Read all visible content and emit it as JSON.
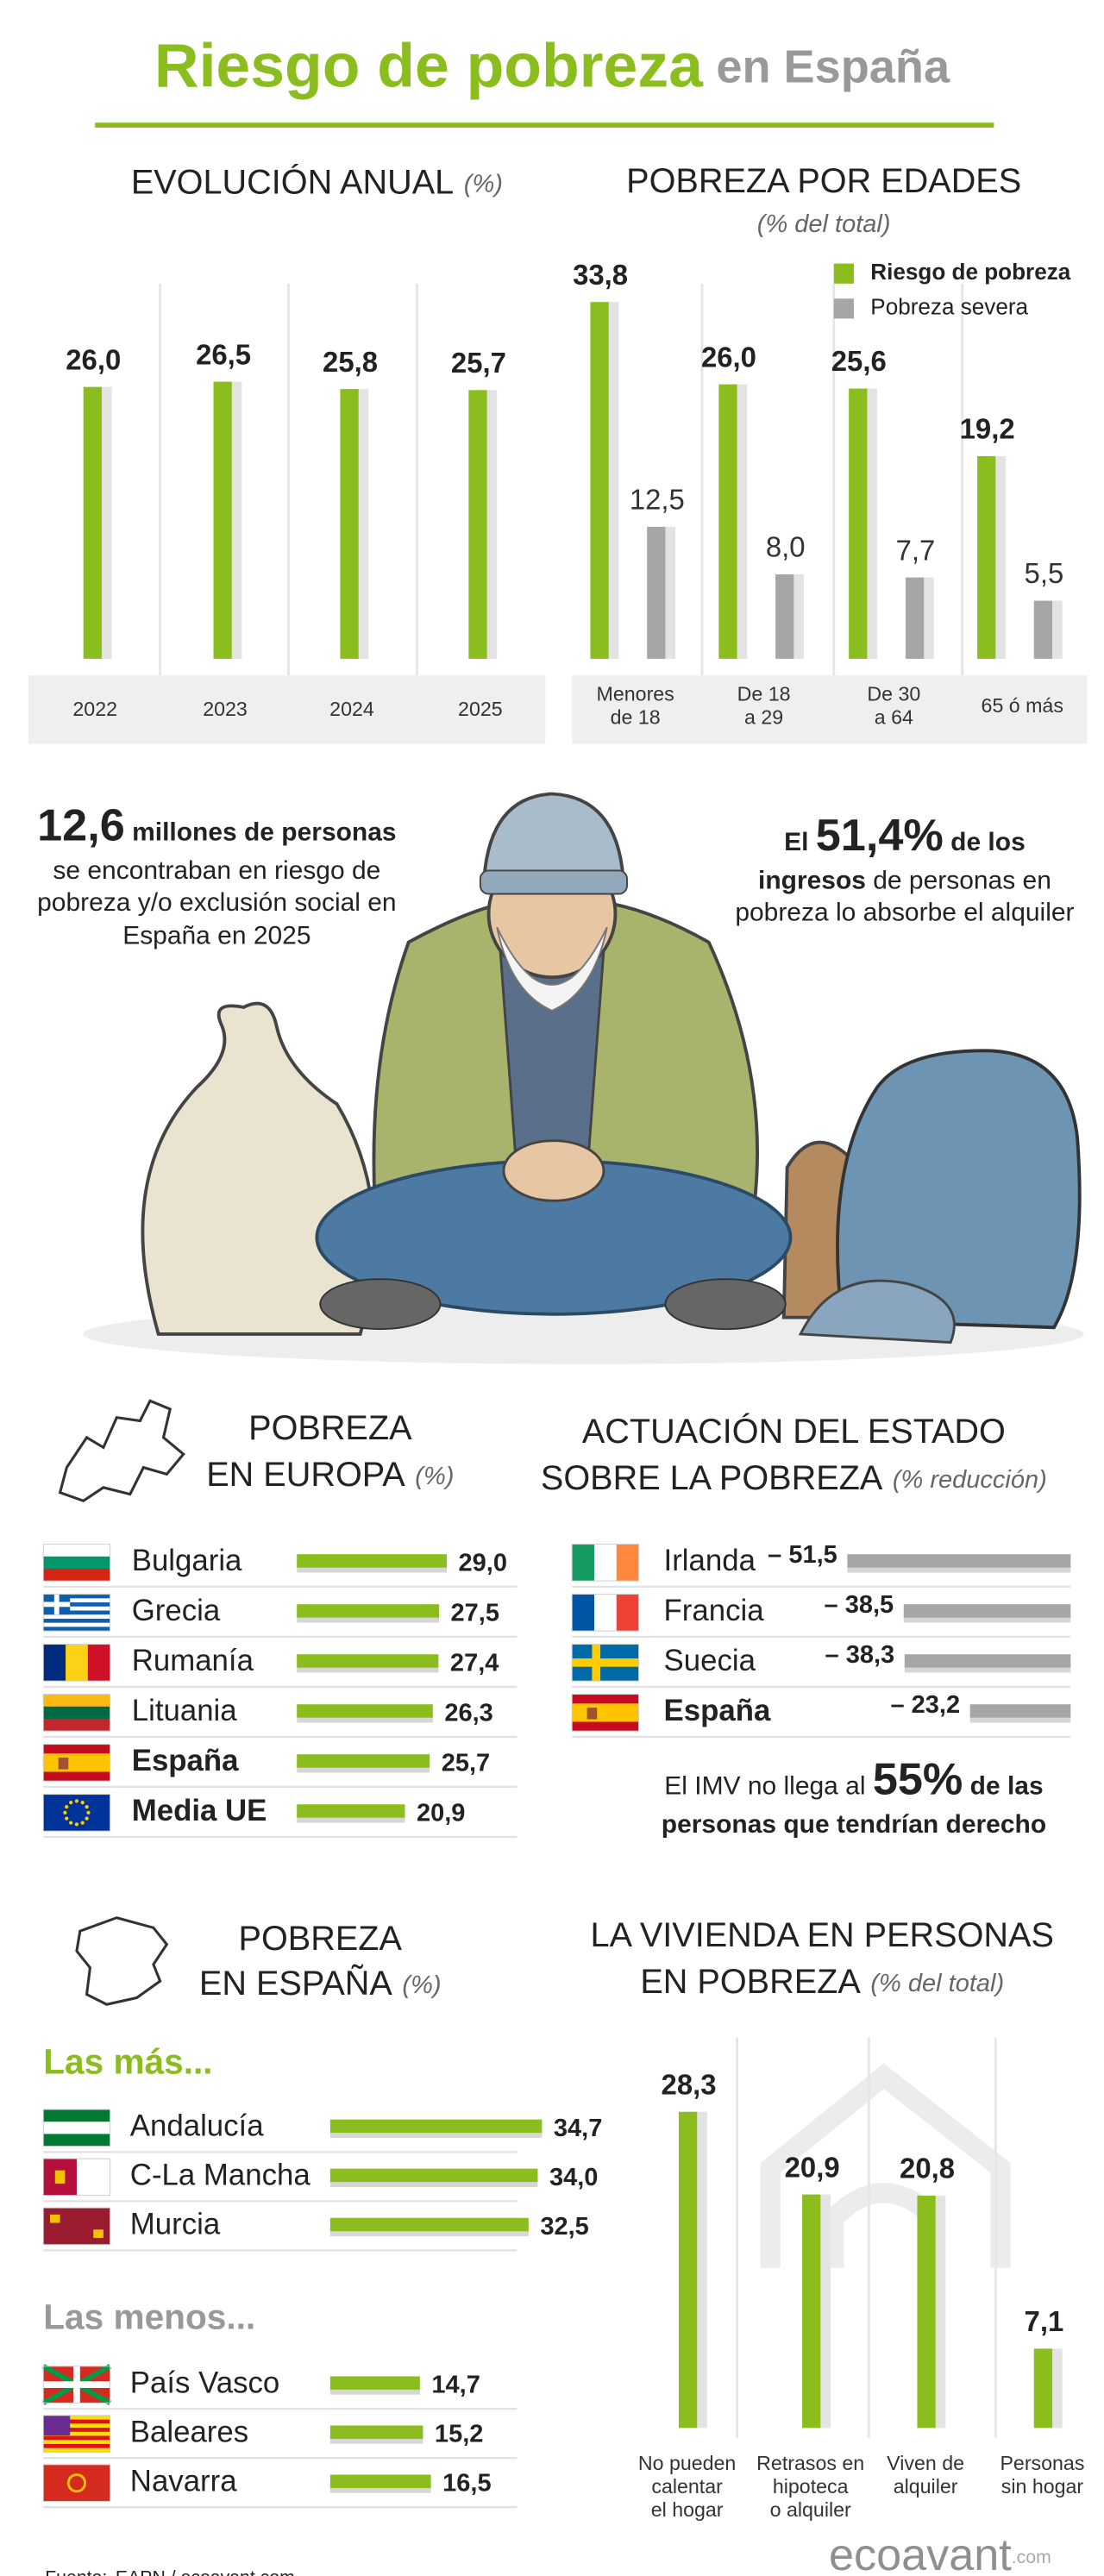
{
  "title": {
    "main": "Riesgo de pobreza",
    "rest": "en España"
  },
  "chart_data": [
    {
      "type": "bar",
      "title": [
        "EVOLUCIÓN ANUAL"
      ],
      "unit": "(%)",
      "categories": [
        "2022",
        "2023",
        "2024",
        "2025"
      ],
      "values": [
        26.0,
        26.5,
        25.8,
        25.7
      ],
      "value_labels": [
        "26,0",
        "26,5",
        "25,8",
        "25,7"
      ],
      "color": "#8cbd1f"
    },
    {
      "type": "bar",
      "title": [
        "POBREZA POR EDADES"
      ],
      "subtitle": "(% del total)",
      "categories": [
        [
          "Menores",
          "de 18"
        ],
        [
          "De 18",
          "a 29"
        ],
        [
          "De 30",
          "a 64"
        ],
        [
          "65 ó más"
        ]
      ],
      "series": [
        {
          "name": "Riesgo de pobreza",
          "color": "#8cbd1f",
          "values": [
            33.8,
            26.0,
            25.6,
            19.2
          ],
          "value_labels": [
            "33,8",
            "26,0",
            "25,6",
            "19,2"
          ]
        },
        {
          "name": "Pobreza severa",
          "color": "#a6a6a6",
          "values": [
            12.5,
            8.0,
            7.7,
            5.5
          ],
          "value_labels": [
            "12,5",
            "8,0",
            "7,7",
            "5,5"
          ]
        }
      ]
    },
    {
      "type": "hbar",
      "title": [
        "POBREZA",
        "EN EUROPA"
      ],
      "unit": "(%)",
      "categories": [
        "Bulgaria",
        "Grecia",
        "Rumanía",
        "Lituania",
        "España",
        "Media UE"
      ],
      "values": [
        29.0,
        27.5,
        27.4,
        26.3,
        25.7,
        20.9
      ],
      "value_labels": [
        "29,0",
        "27,5",
        "27,4",
        "26,3",
        "25,7",
        "20,9"
      ],
      "emphasized": [
        4,
        5
      ],
      "color": "#8cbd1f"
    },
    {
      "type": "hbar",
      "title": [
        "ACTUACIÓN DEL ESTADO",
        "SOBRE LA POBREZA"
      ],
      "unit": "(% reducción)",
      "categories": [
        "Irlanda",
        "Francia",
        "Suecia",
        "España"
      ],
      "values": [
        -51.5,
        -38.5,
        -38.3,
        -23.2
      ],
      "value_labels": [
        "– 51,5",
        "– 38,5",
        "– 38,3",
        "– 23,2"
      ],
      "emphasized": [
        3
      ],
      "color": "#a6a6a6"
    },
    {
      "type": "hbar-groups",
      "title": [
        "POBREZA",
        "EN ESPAÑA"
      ],
      "unit": "(%)",
      "color": "#8cbd1f",
      "groups": [
        {
          "name": "Las más...",
          "name_color": "#8cbd1f",
          "categories": [
            "Andalucía",
            "C-La Mancha",
            "Murcia"
          ],
          "values": [
            34.7,
            34.0,
            32.5
          ],
          "value_labels": [
            "34,7",
            "34,0",
            "32,5"
          ]
        },
        {
          "name": "Las menos...",
          "name_color": "#999999",
          "categories": [
            "País Vasco",
            "Baleares",
            "Navarra"
          ],
          "values": [
            14.7,
            15.2,
            16.5
          ],
          "value_labels": [
            "14,7",
            "15,2",
            "16,5"
          ]
        }
      ]
    },
    {
      "type": "bar",
      "title": [
        "LA VIVIENDA EN PERSONAS",
        "EN POBREZA"
      ],
      "unit": "(% del total)",
      "categories": [
        [
          "No pueden",
          "calentar",
          "el hogar"
        ],
        [
          "Retrasos en",
          "hipoteca",
          "o alquiler"
        ],
        [
          "Viven de",
          "alquiler"
        ],
        [
          "Personas",
          "sin hogar"
        ]
      ],
      "values": [
        28.3,
        20.9,
        20.8,
        7.1
      ],
      "value_labels": [
        "28,3",
        "20,9",
        "20,8",
        "7,1"
      ],
      "color": "#8cbd1f"
    }
  ],
  "highlights": [
    {
      "parts": [
        {
          "text": "12,6",
          "style": "big"
        },
        {
          "text": " millones de personas",
          "style": "bold"
        },
        {
          "text": " se encontraban en riesgo de pobreza y/o exclusión social en España en 2025",
          "style": "normal"
        }
      ]
    },
    {
      "parts": [
        {
          "text": "El ",
          "style": "bold"
        },
        {
          "text": "51,4%",
          "style": "big"
        },
        {
          "text": " de los ingresos",
          "style": "bold"
        },
        {
          "text": " de personas en pobreza lo absorbe el alquiler",
          "style": "normal"
        }
      ]
    },
    {
      "parts": [
        {
          "text": "El IMV no llega al ",
          "style": "normal"
        },
        {
          "text": "55%",
          "style": "big"
        },
        {
          "text": " de las personas que tendrían derecho",
          "style": "bold"
        }
      ]
    }
  ],
  "source": {
    "label": "Fuente:",
    "text": "EAPN / ecoavant.com"
  },
  "logo": {
    "name": "ecoavant",
    "suffix": ".com"
  }
}
